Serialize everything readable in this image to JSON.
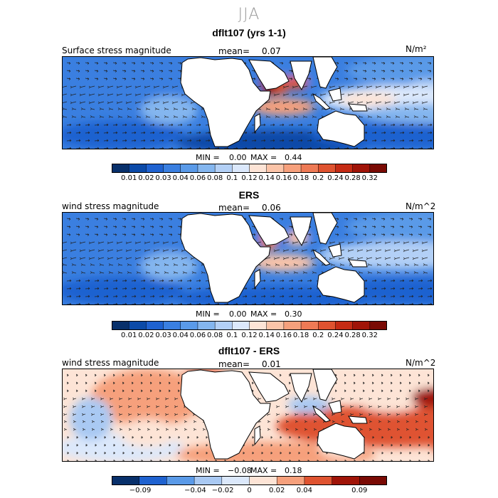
{
  "figure": {
    "title": "JJA"
  },
  "panels": [
    {
      "title": "dflt107 (yrs 1-1)",
      "left_label": "Surface stress magnitude",
      "mean_label": "mean=",
      "mean_value": "0.07",
      "units": "N/m²",
      "min_label": "MIN =",
      "min_value": "0.00",
      "max_label": "MAX =",
      "max_value": "0.44",
      "colorbar": {
        "type": "magnitude",
        "tick_labels": [
          "0.01",
          "0.02",
          "0.03",
          "0.04",
          "0.06",
          "0.08",
          "0.1",
          "0.12",
          "0.14",
          "0.16",
          "0.18",
          "0.2",
          "0.24",
          "0.28",
          "0.32"
        ]
      }
    },
    {
      "title": "ERS",
      "left_label": "wind stress magnitude",
      "mean_label": "mean=",
      "mean_value": "0.06",
      "units": "N/m^2",
      "min_label": "MIN =",
      "min_value": "0.00",
      "max_label": "MAX =",
      "max_value": "0.30",
      "colorbar": {
        "type": "magnitude",
        "tick_labels": [
          "0.01",
          "0.02",
          "0.03",
          "0.04",
          "0.06",
          "0.08",
          "0.1",
          "0.12",
          "0.14",
          "0.16",
          "0.18",
          "0.2",
          "0.24",
          "0.28",
          "0.32"
        ]
      }
    },
    {
      "title": "dflt107 - ERS",
      "left_label": "wind stress magnitude",
      "mean_label": "mean=",
      "mean_value": "0.01",
      "units": "N/m^2",
      "min_label": "MIN =",
      "min_value": "−0.08",
      "max_label": "MAX =",
      "max_value": "0.18",
      "colorbar": {
        "type": "difference",
        "tick_labels": [
          "−0.09",
          "−0.04",
          "−0.02",
          "0",
          "0.02",
          "0.04",
          "0.09"
        ]
      }
    }
  ],
  "colors": {
    "magnitude": [
      "#08306b",
      "#0b4aa8",
      "#1f62d0",
      "#3a7fe0",
      "#5a9ae8",
      "#84b6ef",
      "#b3d0f6",
      "#dbe8fb",
      "#fde4d6",
      "#fbc4a8",
      "#f6a07c",
      "#ee7a55",
      "#df5330",
      "#c52b14",
      "#a01408",
      "#7a0a04"
    ],
    "difference": [
      "#08306b",
      "#1f62d0",
      "#5a9ae8",
      "#a9c9f3",
      "#dbe8fb",
      "#fde4d6",
      "#f6a07c",
      "#df5330",
      "#a01408",
      "#7a0a04"
    ],
    "land": "#ffffff",
    "coast": "#000000"
  }
}
